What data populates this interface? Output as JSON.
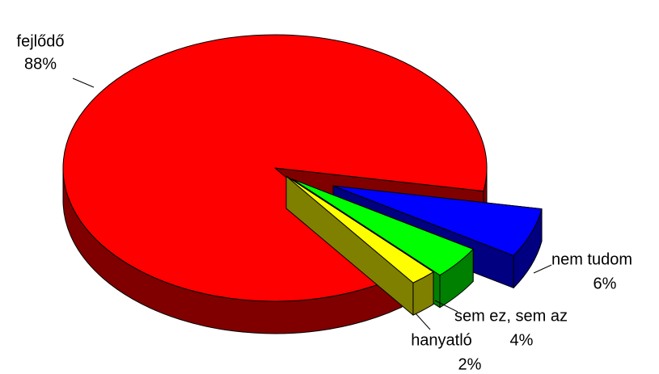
{
  "chart_data": {
    "type": "pie",
    "categories": [
      "fejlődő",
      "nem tudom",
      "sem ez, sem az",
      "hanyatló"
    ],
    "values": [
      88,
      6,
      4,
      2
    ],
    "value_labels": [
      "88%",
      "6%",
      "4%",
      "2%"
    ],
    "colors": [
      "#ff0000",
      "#0000ff",
      "#00ff00",
      "#ffff00"
    ],
    "side_colors": [
      "#800000",
      "#000080",
      "#008000",
      "#808000"
    ]
  }
}
